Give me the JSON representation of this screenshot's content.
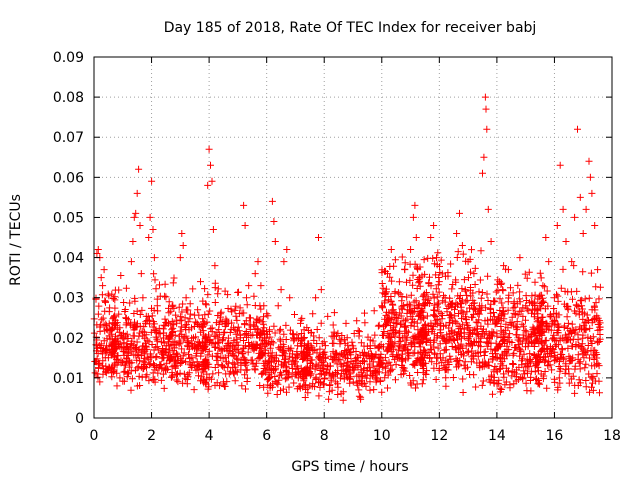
{
  "chart_data": {
    "type": "scatter",
    "title": "Day 185 of 2018, Rate Of TEC Index for receiver babj",
    "xlabel": "GPS time / hours",
    "ylabel": "ROTI / TECUs",
    "xlim": [
      0,
      18
    ],
    "ylim": [
      0,
      0.09
    ],
    "xticks": [
      0,
      2,
      4,
      6,
      8,
      10,
      12,
      14,
      16,
      18
    ],
    "xtick_labels": [
      "0",
      "2",
      "4",
      "6",
      "8",
      "10",
      "12",
      "14",
      "16",
      "18"
    ],
    "yticks": [
      0,
      0.01,
      0.02,
      0.03,
      0.04,
      0.05,
      0.06,
      0.07,
      0.08,
      0.09
    ],
    "ytick_labels": [
      "0",
      "0.01",
      "0.02",
      "0.03",
      "0.04",
      "0.05",
      "0.06",
      "0.07",
      "0.08",
      "0.09"
    ],
    "grid": true,
    "marker": "+",
    "color": "#ff0000",
    "series": [
      {
        "name": "ROTI",
        "points": [
          [
            0.1,
            0.041
          ],
          [
            0.15,
            0.042
          ],
          [
            0.2,
            0.04
          ],
          [
            0.25,
            0.035
          ],
          [
            0.3,
            0.033
          ],
          [
            0.35,
            0.037
          ],
          [
            0.4,
            0.029
          ],
          [
            0.1,
            0.011
          ],
          [
            0.2,
            0.009
          ],
          [
            0.3,
            0.013
          ],
          [
            0.5,
            0.015
          ],
          [
            0.6,
            0.018
          ],
          [
            0.7,
            0.012
          ],
          [
            0.8,
            0.008
          ],
          [
            0.9,
            0.01
          ],
          [
            1.0,
            0.02
          ],
          [
            1.1,
            0.025
          ],
          [
            1.2,
            0.017
          ],
          [
            1.3,
            0.039
          ],
          [
            1.35,
            0.044
          ],
          [
            1.4,
            0.05
          ],
          [
            1.45,
            0.051
          ],
          [
            1.5,
            0.056
          ],
          [
            1.55,
            0.062
          ],
          [
            1.6,
            0.048
          ],
          [
            1.7,
            0.03
          ],
          [
            1.8,
            0.024
          ],
          [
            1.9,
            0.045
          ],
          [
            1.95,
            0.05
          ],
          [
            2.0,
            0.059
          ],
          [
            2.05,
            0.047
          ],
          [
            2.1,
            0.04
          ],
          [
            2.2,
            0.028
          ],
          [
            2.3,
            0.021
          ],
          [
            2.4,
            0.015
          ],
          [
            2.5,
            0.012
          ],
          [
            2.6,
            0.018
          ],
          [
            2.7,
            0.022
          ],
          [
            2.8,
            0.014
          ],
          [
            2.9,
            0.011
          ],
          [
            3.0,
            0.04
          ],
          [
            3.05,
            0.046
          ],
          [
            3.1,
            0.043
          ],
          [
            3.2,
            0.03
          ],
          [
            3.3,
            0.022
          ],
          [
            3.4,
            0.018
          ],
          [
            3.5,
            0.013
          ],
          [
            3.6,
            0.027
          ],
          [
            3.7,
            0.034
          ],
          [
            3.8,
            0.024
          ],
          [
            3.9,
            0.019
          ],
          [
            3.95,
            0.058
          ],
          [
            4.0,
            0.067
          ],
          [
            4.05,
            0.063
          ],
          [
            4.1,
            0.059
          ],
          [
            4.15,
            0.047
          ],
          [
            4.2,
            0.038
          ],
          [
            4.3,
            0.031
          ],
          [
            4.4,
            0.026
          ],
          [
            4.5,
            0.02
          ],
          [
            4.6,
            0.014
          ],
          [
            4.7,
            0.011
          ],
          [
            4.8,
            0.016
          ],
          [
            4.9,
            0.022
          ],
          [
            5.0,
            0.017
          ],
          [
            5.1,
            0.012
          ],
          [
            5.2,
            0.053
          ],
          [
            5.25,
            0.048
          ],
          [
            5.3,
            0.03
          ],
          [
            5.4,
            0.025
          ],
          [
            5.5,
            0.018
          ],
          [
            5.6,
            0.036
          ],
          [
            5.7,
            0.039
          ],
          [
            5.8,
            0.033
          ],
          [
            5.9,
            0.028
          ],
          [
            6.0,
            0.026
          ],
          [
            6.1,
            0.022
          ],
          [
            6.2,
            0.054
          ],
          [
            6.25,
            0.049
          ],
          [
            6.3,
            0.044
          ],
          [
            6.4,
            0.028
          ],
          [
            6.5,
            0.032
          ],
          [
            6.6,
            0.039
          ],
          [
            6.7,
            0.042
          ],
          [
            6.8,
            0.03
          ],
          [
            6.9,
            0.021
          ],
          [
            7.0,
            0.014
          ],
          [
            7.1,
            0.01
          ],
          [
            7.2,
            0.016
          ],
          [
            7.3,
            0.022
          ],
          [
            7.4,
            0.012
          ],
          [
            7.5,
            0.008
          ],
          [
            7.6,
            0.026
          ],
          [
            7.7,
            0.03
          ],
          [
            7.8,
            0.045
          ],
          [
            7.9,
            0.032
          ],
          [
            8.0,
            0.019
          ],
          [
            8.2,
            0.013
          ],
          [
            8.4,
            0.009
          ],
          [
            8.6,
            0.016
          ],
          [
            8.8,
            0.02
          ],
          [
            9.0,
            0.012
          ],
          [
            9.2,
            0.007
          ],
          [
            9.4,
            0.014
          ],
          [
            9.6,
            0.018
          ],
          [
            9.8,
            0.011
          ],
          [
            10.0,
            0.028
          ],
          [
            10.1,
            0.031
          ],
          [
            10.2,
            0.036
          ],
          [
            10.4,
            0.022
          ],
          [
            10.6,
            0.018
          ],
          [
            10.8,
            0.037
          ],
          [
            11.0,
            0.042
          ],
          [
            11.1,
            0.05
          ],
          [
            11.15,
            0.053
          ],
          [
            11.2,
            0.045
          ],
          [
            11.3,
            0.035
          ],
          [
            11.5,
            0.028
          ],
          [
            11.7,
            0.045
          ],
          [
            11.8,
            0.048
          ],
          [
            11.9,
            0.04
          ],
          [
            12.0,
            0.034
          ],
          [
            12.2,
            0.03
          ],
          [
            12.4,
            0.025
          ],
          [
            12.6,
            0.046
          ],
          [
            12.7,
            0.051
          ],
          [
            12.8,
            0.043
          ],
          [
            12.9,
            0.032
          ],
          [
            13.0,
            0.039
          ],
          [
            13.2,
            0.036
          ],
          [
            13.4,
            0.028
          ],
          [
            13.5,
            0.061
          ],
          [
            13.55,
            0.065
          ],
          [
            13.6,
            0.08
          ],
          [
            13.62,
            0.077
          ],
          [
            13.65,
            0.072
          ],
          [
            13.7,
            0.052
          ],
          [
            13.8,
            0.044
          ],
          [
            13.9,
            0.029
          ],
          [
            14.0,
            0.021
          ],
          [
            14.2,
            0.032
          ],
          [
            14.4,
            0.037
          ],
          [
            14.6,
            0.029
          ],
          [
            14.8,
            0.04
          ],
          [
            15.0,
            0.028
          ],
          [
            15.2,
            0.019
          ],
          [
            15.4,
            0.024
          ],
          [
            15.6,
            0.033
          ],
          [
            15.7,
            0.045
          ],
          [
            15.8,
            0.039
          ],
          [
            16.0,
            0.03
          ],
          [
            16.1,
            0.048
          ],
          [
            16.2,
            0.063
          ],
          [
            16.3,
            0.052
          ],
          [
            16.4,
            0.044
          ],
          [
            16.6,
            0.039
          ],
          [
            16.7,
            0.05
          ],
          [
            16.8,
            0.072
          ],
          [
            16.9,
            0.055
          ],
          [
            17.0,
            0.046
          ],
          [
            17.1,
            0.052
          ],
          [
            17.2,
            0.064
          ],
          [
            17.25,
            0.06
          ],
          [
            17.3,
            0.056
          ],
          [
            17.4,
            0.048
          ],
          [
            17.5,
            0.037
          ],
          [
            0.3,
            0.016
          ],
          [
            1.2,
            0.011
          ],
          [
            2.3,
            0.013
          ],
          [
            3.4,
            0.015
          ],
          [
            4.5,
            0.009
          ],
          [
            5.6,
            0.012
          ],
          [
            6.7,
            0.01
          ],
          [
            7.8,
            0.015
          ],
          [
            8.9,
            0.011
          ],
          [
            9.9,
            0.013
          ],
          [
            10.9,
            0.016
          ],
          [
            11.9,
            0.015
          ],
          [
            12.9,
            0.014
          ],
          [
            13.9,
            0.012
          ],
          [
            14.9,
            0.01
          ],
          [
            15.9,
            0.012
          ],
          [
            16.9,
            0.014
          ],
          [
            17.4,
            0.013
          ]
        ],
        "cloud": [
          {
            "x0": 0.0,
            "x1": 3.0,
            "y0": 0.006,
            "y1": 0.032,
            "n": 450
          },
          {
            "x0": 3.0,
            "x1": 6.0,
            "y0": 0.006,
            "y1": 0.03,
            "n": 420
          },
          {
            "x0": 6.0,
            "x1": 10.0,
            "y0": 0.004,
            "y1": 0.024,
            "n": 500
          },
          {
            "x0": 10.0,
            "x1": 13.5,
            "y0": 0.006,
            "y1": 0.038,
            "n": 650
          },
          {
            "x0": 13.5,
            "x1": 17.6,
            "y0": 0.005,
            "y1": 0.034,
            "n": 650
          }
        ]
      }
    ]
  }
}
